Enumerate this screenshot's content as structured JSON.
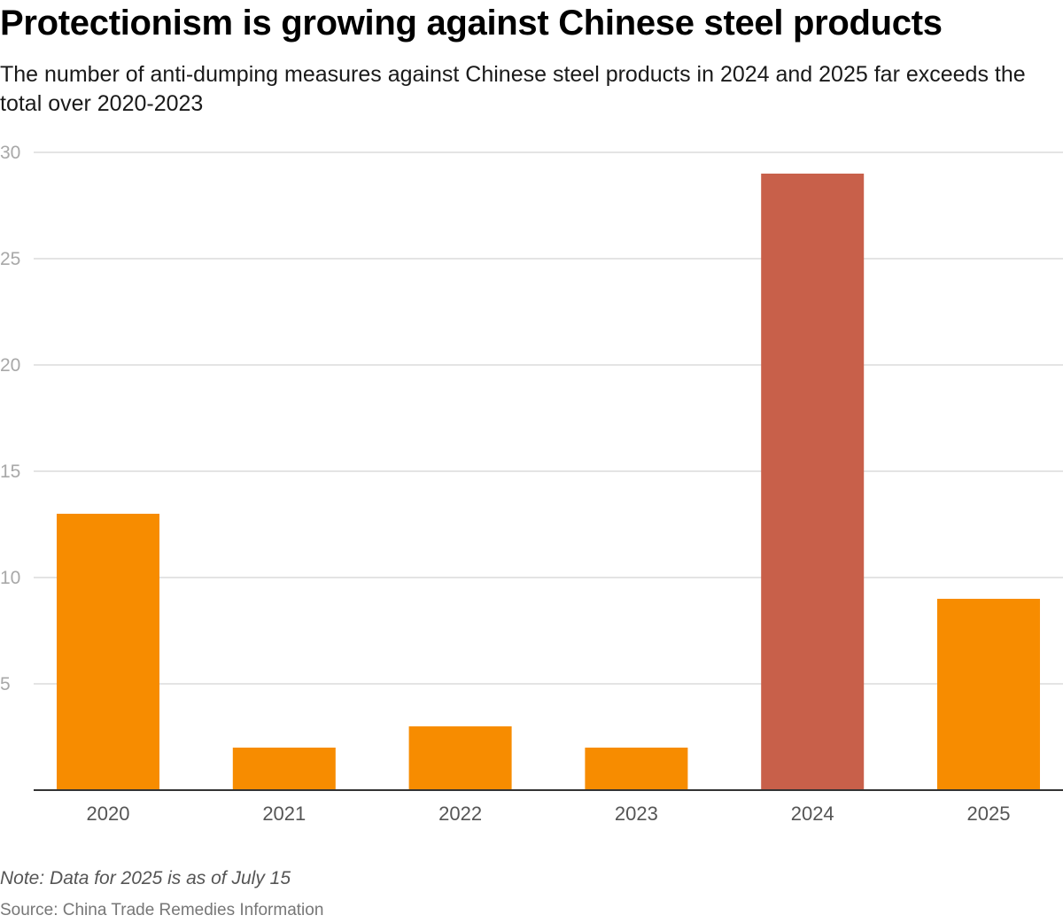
{
  "chart_data": {
    "type": "bar",
    "title": "Protectionism is growing against Chinese steel products",
    "subtitle": "The number of anti-dumping measures against Chinese steel products in 2024 and 2025 far exceeds the total over 2020-2023",
    "categories": [
      "2020",
      "2021",
      "2022",
      "2023",
      "2024",
      "2025"
    ],
    "values": [
      13,
      2,
      3,
      2,
      29,
      9
    ],
    "colors": [
      "#f78c00",
      "#f78c00",
      "#f78c00",
      "#f78c00",
      "#c8604a",
      "#f78c00"
    ],
    "yticks": [
      "0",
      "5",
      "10",
      "15",
      "20",
      "25",
      "30"
    ],
    "ylim": [
      0,
      30
    ],
    "grid": true,
    "xlabel": "",
    "ylabel": ""
  },
  "note": "Note: Data for 2025 is as of July 15",
  "source": "Source: China Trade Remedies Information"
}
